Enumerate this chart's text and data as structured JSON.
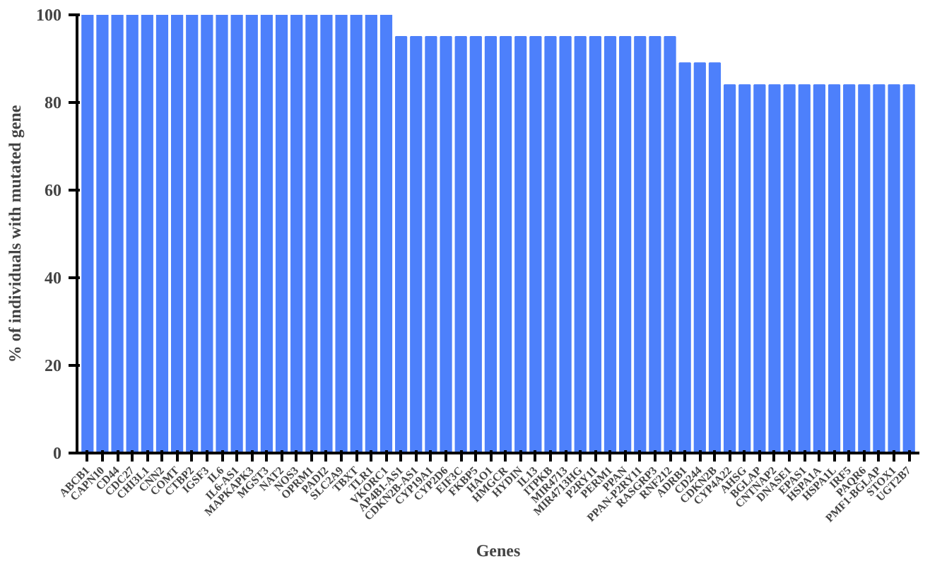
{
  "chart_data": {
    "type": "bar",
    "xlabel": "Genes",
    "ylabel": "% of individuals with mutated gene",
    "categories": [
      "ABCB1",
      "CAPN10",
      "CD44",
      "CDC27",
      "CHI3L1",
      "CNN2",
      "COMT",
      "CTBP2",
      "IGSF3",
      "IL6",
      "IL6-AS1",
      "MAPKAPK3",
      "MGST3",
      "NAT2",
      "NOS3",
      "OPRM1",
      "PADI2",
      "SLC2A9",
      "TBXT",
      "TLR1",
      "VKORC1",
      "AP4B1-AS1",
      "CDKN2B-AS1",
      "CYP19A1",
      "CYP2D6",
      "EIF3C",
      "FKBP5",
      "HAO1",
      "HMGCR",
      "HYDIN",
      "IL13",
      "ITPKB",
      "MIR4713",
      "MIR4713HG",
      "P2RY11",
      "PERM1",
      "PPAN",
      "PPAN-P2RY11",
      "RASGRP3",
      "RNF212",
      "ADRB1",
      "CD244",
      "CDKN2B",
      "CYP4A22",
      "AHSG",
      "BGLAP",
      "CNTNAP2",
      "DNASE1",
      "EPAS1",
      "HSPA1A",
      "HSPA1L",
      "IRF5",
      "PAQR6",
      "PMF1-BGLAP",
      "STOX1",
      "UGT2B7"
    ],
    "values": [
      100,
      100,
      100,
      100,
      100,
      100,
      100,
      100,
      100,
      100,
      100,
      100,
      100,
      100,
      100,
      100,
      100,
      100,
      100,
      100,
      100,
      95,
      95,
      95,
      95,
      95,
      95,
      95,
      95,
      95,
      95,
      95,
      95,
      95,
      95,
      95,
      95,
      95,
      95,
      95,
      89,
      89,
      89,
      84,
      84,
      84,
      84,
      84,
      84,
      84,
      84,
      84,
      84,
      84,
      84,
      84
    ],
    "color": "#4d80fb",
    "ylim": [
      0,
      100
    ],
    "yticks": [
      0,
      20,
      40,
      60,
      80,
      100
    ],
    "grid": false
  }
}
